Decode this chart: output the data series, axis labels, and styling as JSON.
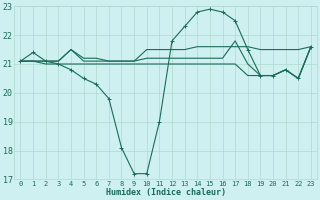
{
  "xlabel": "Humidex (Indice chaleur)",
  "background_color": "#cef0f0",
  "grid_color": "#b0d8d0",
  "line_color": "#1a6b5a",
  "xlim": [
    -0.5,
    23.5
  ],
  "ylim": [
    17,
    23
  ],
  "yticks": [
    17,
    18,
    19,
    20,
    21,
    22,
    23
  ],
  "xticks": [
    0,
    1,
    2,
    3,
    4,
    5,
    6,
    7,
    8,
    9,
    10,
    11,
    12,
    13,
    14,
    15,
    16,
    17,
    18,
    19,
    20,
    21,
    22,
    23
  ],
  "series": [
    {
      "x": [
        0,
        1,
        2,
        3,
        4,
        5,
        6,
        7,
        8,
        9,
        10,
        11,
        12,
        13,
        14,
        15,
        16,
        17,
        18,
        19,
        20,
        21,
        22,
        23
      ],
      "y": [
        21.1,
        21.4,
        21.1,
        21.0,
        20.8,
        20.5,
        20.3,
        19.8,
        18.1,
        17.2,
        17.2,
        19.0,
        21.8,
        22.3,
        22.8,
        22.9,
        22.8,
        22.5,
        21.5,
        20.6,
        20.6,
        20.8,
        20.5,
        21.6
      ],
      "marker": true
    },
    {
      "x": [
        0,
        1,
        2,
        3,
        4,
        5,
        6,
        7,
        8,
        9,
        10,
        11,
        12,
        13,
        14,
        15,
        16,
        17,
        18,
        19,
        20,
        21,
        22,
        23
      ],
      "y": [
        21.1,
        21.1,
        21.1,
        21.1,
        21.5,
        21.2,
        21.2,
        21.1,
        21.1,
        21.1,
        21.5,
        21.5,
        21.5,
        21.5,
        21.6,
        21.6,
        21.6,
        21.6,
        21.6,
        21.5,
        21.5,
        21.5,
        21.5,
        21.6
      ],
      "marker": false
    },
    {
      "x": [
        0,
        1,
        2,
        3,
        4,
        5,
        6,
        7,
        8,
        9,
        10,
        11,
        12,
        13,
        14,
        15,
        16,
        17,
        18,
        19,
        20,
        21,
        22,
        23
      ],
      "y": [
        21.1,
        21.1,
        21.1,
        21.1,
        21.5,
        21.1,
        21.1,
        21.1,
        21.1,
        21.1,
        21.2,
        21.2,
        21.2,
        21.2,
        21.2,
        21.2,
        21.2,
        21.8,
        21.0,
        20.6,
        20.6,
        20.8,
        20.5,
        21.6
      ],
      "marker": false
    },
    {
      "x": [
        0,
        1,
        2,
        3,
        4,
        5,
        6,
        7,
        8,
        9,
        10,
        11,
        12,
        13,
        14,
        15,
        16,
        17,
        18,
        19,
        20,
        21,
        22,
        23
      ],
      "y": [
        21.1,
        21.1,
        21.0,
        21.0,
        21.0,
        21.0,
        21.0,
        21.0,
        21.0,
        21.0,
        21.0,
        21.0,
        21.0,
        21.0,
        21.0,
        21.0,
        21.0,
        21.0,
        20.6,
        20.6,
        20.6,
        20.8,
        20.5,
        21.6
      ],
      "marker": false
    }
  ]
}
